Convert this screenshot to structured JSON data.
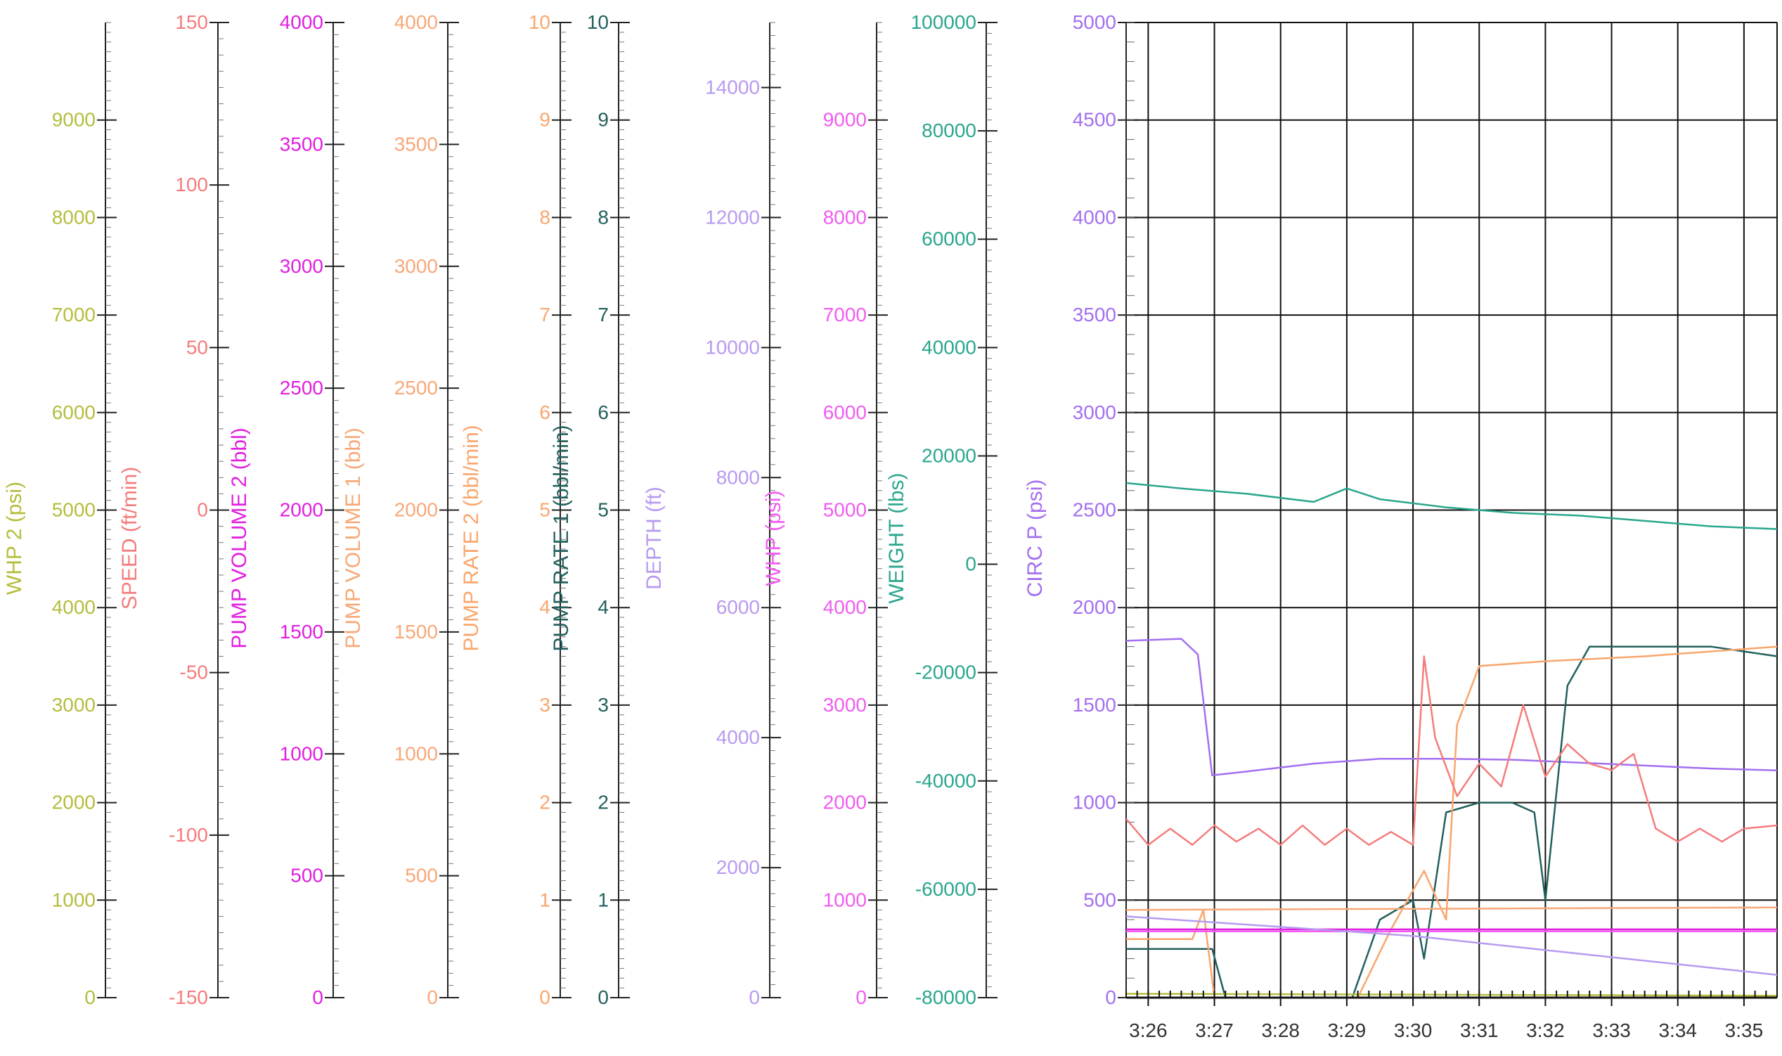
{
  "chart_data": {
    "type": "line",
    "x_ticks": [
      "3:26",
      "3:27",
      "3:28",
      "3:29",
      "3:30",
      "3:31",
      "3:32",
      "3:33",
      "3:34",
      "3:35"
    ],
    "x_range": [
      "3:25:40",
      "3:35:30"
    ],
    "grid": true,
    "axes": [
      {
        "label": "WHP 2",
        "unit": "(psi)",
        "color": "#b5bd3c",
        "min": 0,
        "max": 10000,
        "ticks": [
          0,
          1000,
          2000,
          3000,
          4000,
          5000,
          6000,
          7000,
          8000,
          9000
        ]
      },
      {
        "label": "SPEED",
        "unit": "(ft/min)",
        "color": "#f47c7c",
        "min": -150,
        "max": 150,
        "ticks": [
          -150,
          -100,
          -50,
          0,
          50,
          100,
          150
        ]
      },
      {
        "label": "PUMP VOLUME 2",
        "unit": "(bbl)",
        "color": "#e020e0",
        "min": 0,
        "max": 4000,
        "ticks": [
          0,
          500,
          1000,
          1500,
          2000,
          2500,
          3000,
          3500,
          4000
        ]
      },
      {
        "label": "PUMP VOLUME 1",
        "unit": "(bbl)",
        "color": "#f7a878",
        "min": 0,
        "max": 4000,
        "ticks": [
          0,
          500,
          1000,
          1500,
          2000,
          2500,
          3000,
          3500,
          4000
        ]
      },
      {
        "label": "PUMP RATE 2",
        "unit": "(bbl/min)",
        "color": "#f9a66c",
        "min": 0,
        "max": 10,
        "ticks": [
          0,
          1,
          2,
          3,
          4,
          5,
          6,
          7,
          8,
          9,
          10
        ]
      },
      {
        "label": "PUMP RATE 1",
        "unit": "(bbl/min)",
        "color": "#22605c",
        "min": 0,
        "max": 10,
        "ticks": [
          0,
          1,
          2,
          3,
          4,
          5,
          6,
          7,
          8,
          9,
          10
        ]
      },
      {
        "label": "DEPTH",
        "unit": "(ft)",
        "color": "#b89af0",
        "min": 0,
        "max": 15000,
        "ticks": [
          0,
          2000,
          4000,
          6000,
          8000,
          10000,
          12000,
          14000
        ]
      },
      {
        "label": "WHP",
        "unit": "(psi)",
        "color": "#f05cf0",
        "min": 0,
        "max": 10000,
        "ticks": [
          0,
          1000,
          2000,
          3000,
          4000,
          5000,
          6000,
          7000,
          8000,
          9000
        ]
      },
      {
        "label": "WEIGHT",
        "unit": "(lbs)",
        "color": "#2aa68e",
        "min": -80000,
        "max": 100000,
        "ticks": [
          -80000,
          -60000,
          -40000,
          -20000,
          0,
          20000,
          40000,
          60000,
          80000,
          100000
        ]
      },
      {
        "label": "CIRC P",
        "unit": "(psi)",
        "color": "#a36ff0",
        "min": 0,
        "max": 5000,
        "ticks": [
          0,
          500,
          1000,
          1500,
          2000,
          2500,
          3000,
          3500,
          4000,
          4500,
          5000
        ]
      }
    ],
    "series": [
      {
        "axis": "WEIGHT",
        "color": "#2aa68e",
        "x": [
          "3:25:40",
          "3:26:30",
          "3:27:30",
          "3:28:30",
          "3:29:00",
          "3:29:30",
          "3:30:30",
          "3:31:30",
          "3:32:30",
          "3:33:30",
          "3:34:30",
          "3:35:30"
        ],
        "values": [
          15000,
          14000,
          13000,
          11500,
          14000,
          12000,
          10500,
          9500,
          9000,
          8000,
          7000,
          6500
        ]
      },
      {
        "axis": "CIRC P",
        "color": "#a36ff0",
        "x": [
          "3:25:40",
          "3:26:30",
          "3:26:45",
          "3:26:58",
          "3:27:30",
          "3:28:30",
          "3:29:30",
          "3:30:30",
          "3:31:30",
          "3:32:30",
          "3:33:30",
          "3:34:30",
          "3:35:30"
        ],
        "values": [
          1830,
          1840,
          1760,
          1140,
          1160,
          1200,
          1225,
          1225,
          1220,
          1205,
          1190,
          1175,
          1165
        ]
      },
      {
        "axis": "PUMP RATE 1",
        "color": "#22605c",
        "x": [
          "3:25:40",
          "3:26:58",
          "3:27:10",
          "3:29:05",
          "3:29:30",
          "3:30:00",
          "3:30:10",
          "3:30:30",
          "3:31:00",
          "3:31:30",
          "3:31:50",
          "3:32:00",
          "3:32:20",
          "3:32:40",
          "3:33:30",
          "3:34:30",
          "3:35:30"
        ],
        "values": [
          0.5,
          0.5,
          0,
          0,
          0.8,
          1.0,
          0.4,
          1.9,
          2.0,
          2.0,
          1.9,
          1.0,
          3.2,
          3.6,
          3.6,
          3.6,
          3.5
        ]
      },
      {
        "axis": "PUMP RATE 2",
        "color": "#f9a66c",
        "x": [
          "3:25:40",
          "3:26:40",
          "3:26:50",
          "3:27:00",
          "3:29:10",
          "3:29:40",
          "3:30:10",
          "3:30:30",
          "3:30:40",
          "3:31:00",
          "3:32:00",
          "3:33:30",
          "3:35:30"
        ],
        "values": [
          0.6,
          0.6,
          0.9,
          0,
          0,
          0.7,
          1.3,
          0.8,
          2.8,
          3.4,
          3.45,
          3.5,
          3.6
        ]
      },
      {
        "axis": "PUMP VOLUME 1",
        "color": "#f7a878",
        "x": [
          "3:25:40",
          "3:35:30"
        ],
        "values": [
          360,
          370
        ]
      },
      {
        "axis": "WHP",
        "color": "#f05cf0",
        "x": [
          "3:25:40",
          "3:35:30"
        ],
        "values": [
          680,
          680
        ]
      },
      {
        "axis": "PUMP VOLUME 2",
        "color": "#e020e0",
        "x": [
          "3:25:40",
          "3:35:30"
        ],
        "values": [
          280,
          280
        ]
      },
      {
        "axis": "DEPTH",
        "color": "#b89af0",
        "x": [
          "3:25:40",
          "3:30:00",
          "3:35:30"
        ],
        "values": [
          1250,
          950,
          350
        ]
      },
      {
        "axis": "SPEED",
        "color": "#f47c7c",
        "x": [
          "3:25:40",
          "3:26:00",
          "3:26:20",
          "3:26:40",
          "3:27:00",
          "3:27:20",
          "3:27:40",
          "3:28:00",
          "3:28:20",
          "3:28:40",
          "3:29:00",
          "3:29:20",
          "3:29:40",
          "3:30:00",
          "3:30:10",
          "3:30:20",
          "3:30:40",
          "3:31:00",
          "3:31:20",
          "3:31:40",
          "3:32:00",
          "3:32:20",
          "3:32:40",
          "3:33:00",
          "3:33:20",
          "3:33:40",
          "3:34:00",
          "3:34:20",
          "3:34:40",
          "3:35:00",
          "3:35:30"
        ],
        "values": [
          -95,
          -103,
          -98,
          -103,
          -97,
          -102,
          -98,
          -103,
          -97,
          -103,
          -98,
          -103,
          -99,
          -103,
          -45,
          -70,
          -88,
          -78,
          -85,
          -60,
          -82,
          -72,
          -78,
          -80,
          -75,
          -98,
          -102,
          -98,
          -102,
          -98,
          -97
        ]
      },
      {
        "axis": "WHP 2",
        "color": "#b5bd3c",
        "x": [
          "3:25:40",
          "3:35:30"
        ],
        "values": [
          40,
          20
        ]
      }
    ]
  }
}
